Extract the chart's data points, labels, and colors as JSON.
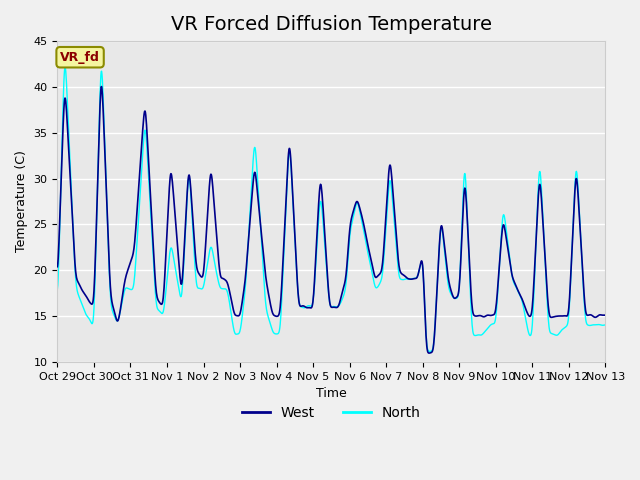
{
  "title": "VR Forced Diffusion Temperature",
  "xlabel": "Time",
  "ylabel": "Temperature (C)",
  "ylim": [
    10,
    45
  ],
  "background_color": "#f0f0f0",
  "plot_bg_color": "#e8e8e8",
  "grid_color": "#ffffff",
  "west_color": "#00008B",
  "north_color": "#00FFFF",
  "west_label": "West",
  "north_label": "North",
  "annotation_text": "VR_fd",
  "annotation_bg": "#f5f5a0",
  "annotation_border": "#8B8B00",
  "annotation_text_color": "#8B0000",
  "tick_labels": [
    "Oct 29",
    "Oct 30",
    "Oct 31",
    "Nov 1",
    "Nov 2",
    "Nov 3",
    "Nov 4",
    "Nov 5",
    "Nov 6",
    "Nov 7",
    "Nov 8",
    "Nov 9",
    "Nov 10",
    "Nov 11",
    "Nov 12",
    "Nov 13"
  ],
  "yticks": [
    10,
    15,
    20,
    25,
    30,
    35,
    40,
    45
  ],
  "title_fontsize": 14,
  "axis_label_fontsize": 9,
  "tick_fontsize": 8,
  "legend_fontsize": 10,
  "keypoints_t": [
    0,
    0.2,
    0.5,
    0.8,
    1.0,
    1.2,
    1.45,
    1.65,
    1.85,
    2.1,
    2.4,
    2.7,
    2.9,
    3.1,
    3.4,
    3.6,
    3.8,
    4.0,
    4.2,
    4.45,
    4.65,
    4.85,
    5.0,
    5.15,
    5.4,
    5.7,
    5.9,
    6.1,
    6.35,
    6.6,
    6.85,
    7.0,
    7.2,
    7.45,
    7.7,
    7.9,
    8.0,
    8.2,
    8.45,
    8.7,
    8.9,
    9.1,
    9.35,
    9.6,
    9.85,
    10.0,
    10.1,
    10.3,
    10.5,
    10.7,
    10.85,
    11.0,
    11.15,
    11.35,
    11.6,
    11.85,
    12.0,
    12.2,
    12.45,
    12.7,
    12.9,
    13.0,
    13.2,
    13.45,
    13.7,
    13.9,
    14.0,
    14.2,
    14.45,
    14.7,
    14.9,
    15.0
  ],
  "west_v": [
    18,
    41,
    19,
    17,
    16,
    43,
    17,
    14,
    19,
    22,
    39,
    17,
    16,
    32,
    17,
    32,
    20,
    19,
    32,
    19,
    19,
    15,
    15,
    19,
    32,
    19,
    15,
    15,
    35,
    16,
    16,
    16,
    31,
    16,
    16,
    19,
    25,
    28,
    24,
    19,
    20,
    33,
    20,
    19,
    19,
    22,
    11,
    11,
    26,
    19,
    17,
    17,
    31,
    15,
    15,
    15,
    15,
    26,
    19,
    17,
    15,
    15,
    31,
    15,
    15,
    15,
    15,
    32,
    15,
    15,
    15,
    15
  ],
  "north_v": [
    15,
    45,
    18,
    15,
    14,
    45,
    16,
    14,
    18,
    18,
    37,
    16,
    15,
    23,
    16,
    32,
    18,
    18,
    23,
    18,
    18,
    13,
    13,
    18,
    35,
    16,
    13,
    13,
    35,
    16,
    16,
    16,
    29,
    16,
    16,
    18,
    24,
    28,
    23,
    18,
    19,
    31,
    19,
    19,
    19,
    22,
    11,
    11,
    26,
    18,
    17,
    17,
    33,
    13,
    13,
    14,
    14,
    27,
    19,
    17,
    13,
    13,
    33,
    13,
    13,
    14,
    14,
    33,
    14,
    14,
    14,
    14
  ]
}
